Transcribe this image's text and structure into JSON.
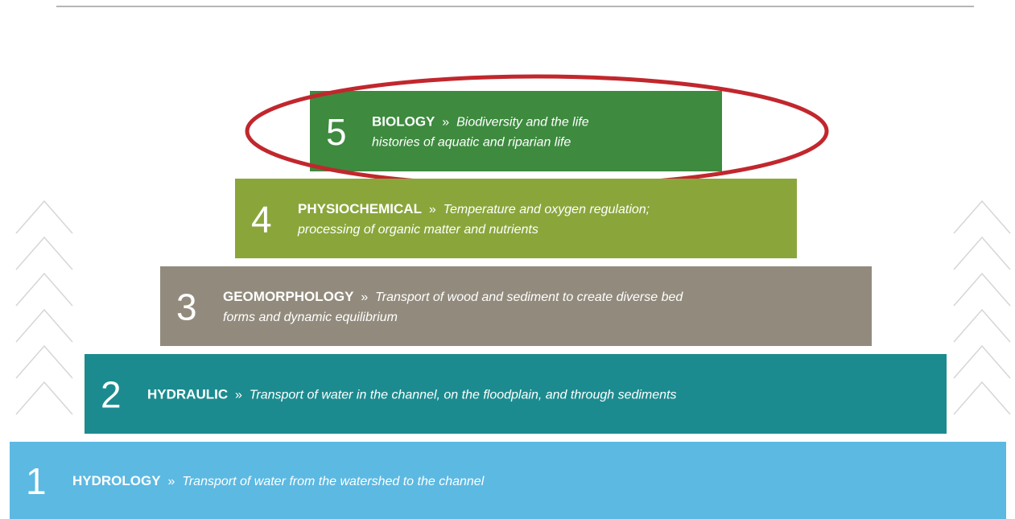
{
  "separator": "»",
  "levels": [
    {
      "number": "5",
      "name": "BIOLOGY",
      "description": [
        "Biodiversity and the life",
        "histories of aquatic and riparian life"
      ],
      "color": "#3e8a3f",
      "highlighted": true
    },
    {
      "number": "4",
      "name": "PHYSIOCHEMICAL",
      "description": [
        "Temperature and oxygen regulation;",
        "processing of organic matter and nutrients"
      ],
      "color": "#8aa63b"
    },
    {
      "number": "3",
      "name": "GEOMORPHOLOGY",
      "description": [
        "Transport of wood and sediment to create diverse bed",
        "forms and dynamic equilibrium"
      ],
      "color": "#928b7d"
    },
    {
      "number": "2",
      "name": "HYDRAULIC",
      "description": [
        "Transport of water in the channel, on the floodplain, and through sediments"
      ],
      "color": "#1c8b8f"
    },
    {
      "number": "1",
      "name": "HYDROLOGY",
      "description": [
        "Transport of water from the watershed to the channel"
      ],
      "color": "#5cb9e2"
    }
  ]
}
